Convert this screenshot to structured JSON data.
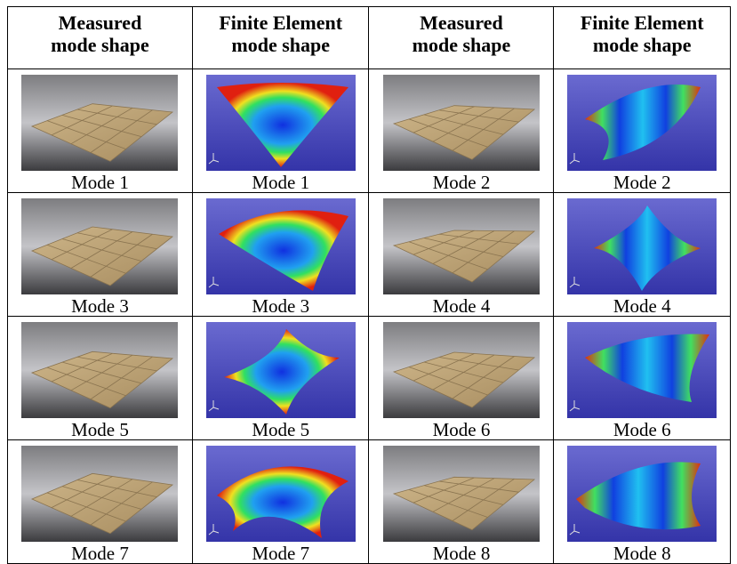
{
  "table": {
    "header": [
      [
        "Measured",
        "mode shape"
      ],
      [
        "Finite Element",
        "mode shape"
      ],
      [
        "Measured",
        "mode shape"
      ],
      [
        "Finite Element",
        "mode shape"
      ]
    ],
    "rows": [
      [
        "Mode 1",
        "Mode 1",
        "Mode 2",
        "Mode 2"
      ],
      [
        "Mode 3",
        "Mode 3",
        "Mode 4",
        "Mode 4"
      ],
      [
        "Mode 5",
        "Mode 5",
        "Mode 6",
        "Mode 6"
      ],
      [
        "Mode 7",
        "Mode 7",
        "Mode 8",
        "Mode 8"
      ]
    ]
  }
}
